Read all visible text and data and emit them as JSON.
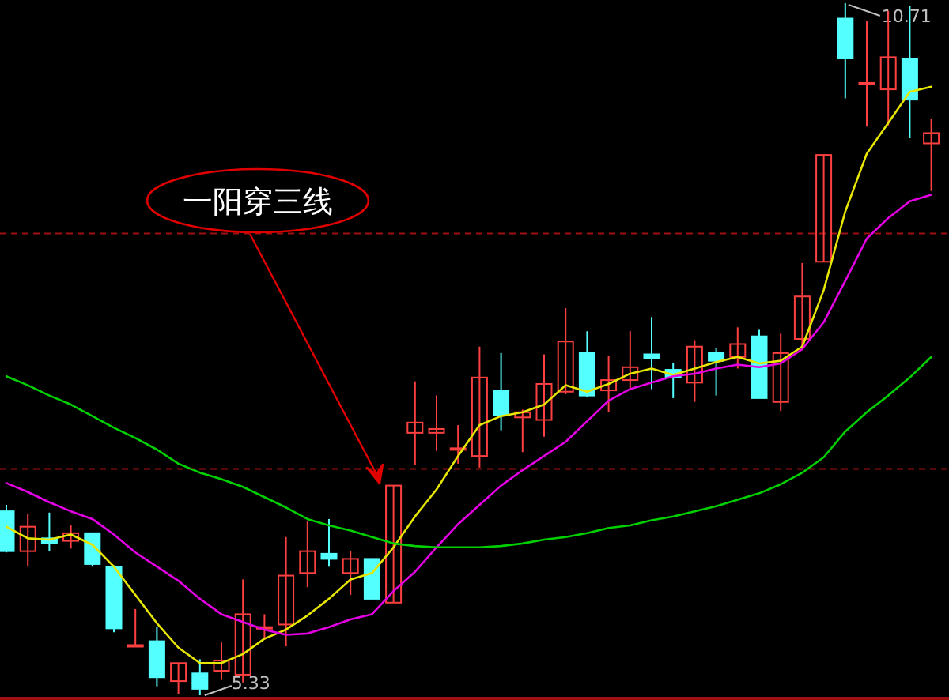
{
  "chart_data": {
    "type": "candlestick",
    "categories": [
      null,
      null,
      null,
      null,
      null,
      null,
      null,
      null,
      null,
      null,
      null,
      null,
      null,
      null,
      null,
      null,
      null,
      null,
      null,
      null,
      null,
      null,
      null,
      null,
      null,
      null,
      null,
      null,
      null,
      null,
      null,
      null,
      null,
      null,
      null,
      null,
      null,
      null,
      null,
      null,
      null,
      null,
      null,
      null
    ],
    "ohlc": [
      [
        6.76,
        6.81,
        6.44,
        6.45
      ],
      [
        6.45,
        6.74,
        6.33,
        6.64
      ],
      [
        6.55,
        6.75,
        6.45,
        6.51
      ],
      [
        6.53,
        6.65,
        6.47,
        6.59
      ],
      [
        6.59,
        6.59,
        6.33,
        6.35
      ],
      [
        6.33,
        6.34,
        5.82,
        5.85
      ],
      [
        5.71,
        6.0,
        5.71,
        5.72
      ],
      [
        5.75,
        5.86,
        5.4,
        5.47
      ],
      [
        5.44,
        5.58,
        5.34,
        5.58
      ],
      [
        5.5,
        5.61,
        5.33,
        5.38
      ],
      [
        5.52,
        5.74,
        5.45,
        5.6
      ],
      [
        5.49,
        6.23,
        5.43,
        5.96
      ],
      [
        5.85,
        5.96,
        5.76,
        5.86
      ],
      [
        5.88,
        6.56,
        5.71,
        6.26
      ],
      [
        6.28,
        6.68,
        6.17,
        6.45
      ],
      [
        6.43,
        6.7,
        6.33,
        6.39
      ],
      [
        6.28,
        6.45,
        6.11,
        6.39
      ],
      [
        6.39,
        6.39,
        6.08,
        6.08
      ],
      [
        6.05,
        6.96,
        6.05,
        6.96
      ],
      [
        7.37,
        7.77,
        7.12,
        7.45
      ],
      [
        7.37,
        7.66,
        7.23,
        7.4
      ],
      [
        7.24,
        7.43,
        7.13,
        7.25
      ],
      [
        7.19,
        8.04,
        7.1,
        7.8
      ],
      [
        7.7,
        7.99,
        7.39,
        7.51
      ],
      [
        7.49,
        7.55,
        7.22,
        7.53
      ],
      [
        7.47,
        7.98,
        7.34,
        7.75
      ],
      [
        7.69,
        8.34,
        7.67,
        8.08
      ],
      [
        7.99,
        8.16,
        7.65,
        7.66
      ],
      [
        7.7,
        7.97,
        7.53,
        7.78
      ],
      [
        7.78,
        8.16,
        7.7,
        7.88
      ],
      [
        7.98,
        8.27,
        7.71,
        7.95
      ],
      [
        7.86,
        7.91,
        7.64,
        7.8
      ],
      [
        7.76,
        8.09,
        7.61,
        8.04
      ],
      [
        7.99,
        8.03,
        7.66,
        7.93
      ],
      [
        7.96,
        8.19,
        7.87,
        8.06
      ],
      [
        8.12,
        8.17,
        7.64,
        7.64
      ],
      [
        7.61,
        8.14,
        7.54,
        7.99
      ],
      [
        8.1,
        8.69,
        8.02,
        8.43
      ],
      [
        8.7,
        9.53,
        8.7,
        9.53
      ],
      [
        10.59,
        10.71,
        9.97,
        10.28
      ],
      [
        10.08,
        10.57,
        9.75,
        10.09
      ],
      [
        10.04,
        10.65,
        9.76,
        10.29
      ],
      [
        10.28,
        10.69,
        9.66,
        9.96
      ],
      [
        9.62,
        9.81,
        9.25,
        9.7
      ]
    ],
    "series": [
      {
        "type": "line",
        "color": "#e6e600",
        "values": [
          6.64,
          6.55,
          6.54,
          6.58,
          6.5,
          6.33,
          6.11,
          5.89,
          5.7,
          5.58,
          5.58,
          5.65,
          5.77,
          5.84,
          5.95,
          6.08,
          6.23,
          6.28,
          6.48,
          6.72,
          6.93,
          7.19,
          7.43,
          7.5,
          7.53,
          7.59,
          7.74,
          7.69,
          7.75,
          7.83,
          7.87,
          7.82,
          7.87,
          7.92,
          7.96,
          7.91,
          7.93,
          8.04,
          8.48,
          9.09,
          9.54,
          9.78,
          10.02,
          10.06
        ]
      },
      {
        "type": "line",
        "color": "#e600e6",
        "values": [
          6.98,
          6.91,
          6.83,
          6.76,
          6.7,
          6.58,
          6.44,
          6.33,
          6.22,
          6.08,
          5.96,
          5.9,
          5.84,
          5.8,
          5.81,
          5.86,
          5.92,
          5.96,
          6.14,
          6.29,
          6.48,
          6.66,
          6.81,
          6.96,
          7.08,
          7.19,
          7.3,
          7.46,
          7.62,
          7.71,
          7.76,
          7.81,
          7.83,
          7.87,
          7.9,
          7.88,
          7.91,
          8.02,
          8.23,
          8.55,
          8.88,
          9.04,
          9.17,
          9.22
        ]
      },
      {
        "type": "line",
        "color": "#00d000",
        "values": [
          7.81,
          7.74,
          7.66,
          7.59,
          7.5,
          7.41,
          7.33,
          7.24,
          7.13,
          7.06,
          7.01,
          6.95,
          6.87,
          6.79,
          6.7,
          6.65,
          6.61,
          6.56,
          6.51,
          6.49,
          6.48,
          6.48,
          6.48,
          6.49,
          6.51,
          6.54,
          6.56,
          6.59,
          6.63,
          6.65,
          6.69,
          6.72,
          6.76,
          6.8,
          6.85,
          6.9,
          6.97,
          7.06,
          7.18,
          7.38,
          7.53,
          7.66,
          7.8,
          7.96
        ]
      }
    ],
    "ref_lines": [
      {
        "axis": "y",
        "value": 8.92,
        "color": "#a01010",
        "line_style": "dashed"
      },
      {
        "axis": "y",
        "value": 7.09,
        "color": "#a01010",
        "line_style": "dashed"
      }
    ],
    "annotations": [
      "一阳穿三线",
      "10.71",
      "5.33"
    ]
  }
}
